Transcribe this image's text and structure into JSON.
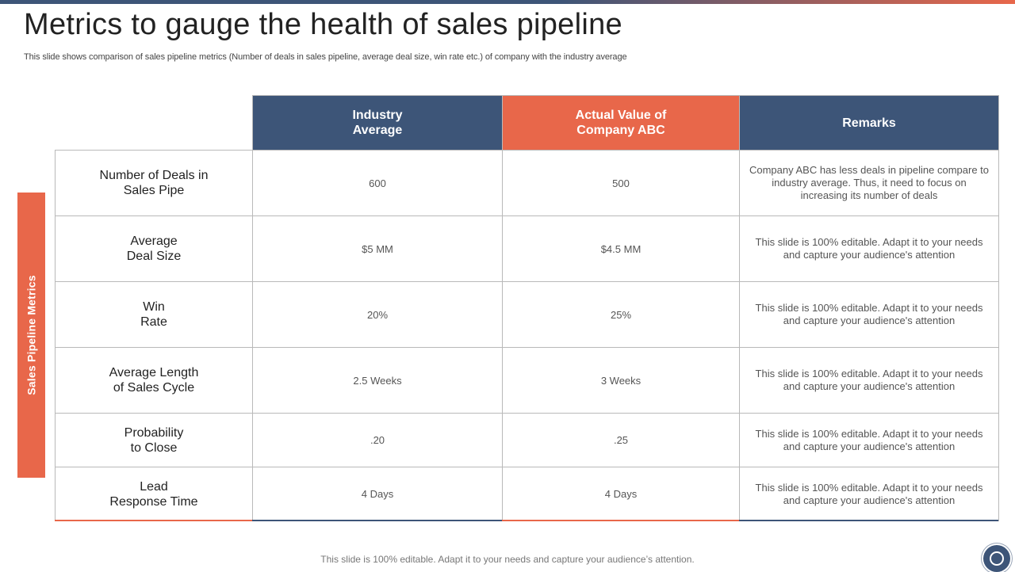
{
  "slide": {
    "title": "Metrics to gauge the health of sales pipeline",
    "subtitle": "This slide shows comparison of sales pipeline metrics (Number of deals in sales pipeline, average deal size, win rate etc.) of company with the industry average",
    "sidebar_label": "Sales Pipeline Metrics",
    "footer": "This slide is 100% editable. Adapt it to your needs and capture your audience’s attention."
  },
  "table": {
    "headers": {
      "industry": "Industry\nAverage",
      "company": "Actual Value of\nCompany ABC",
      "remarks": "Remarks"
    },
    "rows": [
      {
        "metric": "Number of Deals in\nSales Pipe",
        "industry": "600",
        "company": "500",
        "remark": "Company ABC has less deals in pipeline compare to industry average.  Thus,  it need to focus on increasing its number of deals"
      },
      {
        "metric": "Average\nDeal Size",
        "industry": "$5 MM",
        "company": "$4.5 MM",
        "remark": "This slide is 100% editable. Adapt it to your needs and capture your audience's attention"
      },
      {
        "metric": "Win\nRate",
        "industry": "20%",
        "company": "25%",
        "remark": "This slide is 100% editable. Adapt it to your needs and capture your audience's attention"
      },
      {
        "metric": "Average Length\nof Sales Cycle",
        "industry": "2.5 Weeks",
        "company": "3 Weeks",
        "remark": "This slide is 100% editable. Adapt it to your needs and capture your audience's attention"
      },
      {
        "metric": "Probability\nto Close",
        "industry": ".20",
        "company": ".25",
        "remark": "This slide is 100% editable. Adapt it to your needs and capture your audience's attention"
      },
      {
        "metric": "Lead\nResponse Time",
        "industry": "4 Days",
        "company": "4 Days",
        "remark": "This slide is 100% editable. Adapt it to your needs and capture your audience's attention"
      }
    ]
  },
  "colors": {
    "navy": "#3d5578",
    "orange": "#e8674a"
  },
  "icons": {
    "logo": "circle-logo-icon"
  }
}
